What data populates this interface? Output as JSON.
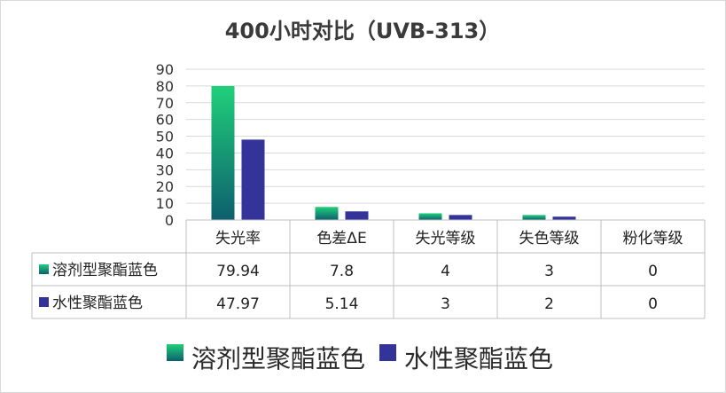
{
  "chart_data": {
    "type": "bar",
    "title": "400小时对比（UVB-313）",
    "categories": [
      "失光率",
      "色差ΔE",
      "失光等级",
      "失色等级",
      "粉化等级"
    ],
    "series": [
      {
        "name": "溶剂型聚酯蓝色",
        "values": [
          79.94,
          7.8,
          4,
          3,
          0
        ],
        "display": [
          "79.94",
          "7.8",
          "4",
          "3",
          "0"
        ],
        "color_top": "#1fd07a",
        "color_bottom": "#0e5f6e"
      },
      {
        "name": "水性聚酯蓝色",
        "values": [
          47.97,
          5.14,
          3,
          2,
          0
        ],
        "display": [
          "47.97",
          "5.14",
          "3",
          "2",
          "0"
        ],
        "color": "#333399"
      }
    ],
    "yticks": [
      "0",
      "10",
      "20",
      "30",
      "40",
      "50",
      "60",
      "70",
      "80",
      "90"
    ],
    "ylim": [
      0,
      90
    ],
    "grid": true,
    "legend_position": "bottom",
    "data_table": true
  }
}
